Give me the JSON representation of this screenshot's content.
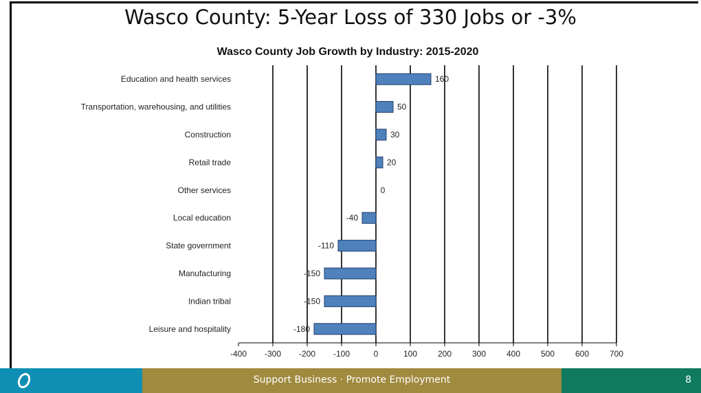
{
  "slide": {
    "title": "Wasco County: 5-Year Loss of 330 Jobs or -3%",
    "footer_text": "Support Business · Promote Employment",
    "page_number": "8"
  },
  "colors": {
    "bar": "#4f81bd",
    "footer_left": "#0f8fb3",
    "footer_mid": "#a08a3e",
    "footer_right": "#0f7a5e"
  },
  "chart_data": {
    "type": "bar",
    "orientation": "horizontal",
    "title": "Wasco County Job Growth by Industry: 2015-2020",
    "categories": [
      "Education and health services",
      "Transportation, warehousing, and utilities",
      "Construction",
      "Retail trade",
      "Other services",
      "Local education",
      "State government",
      "Manufacturing",
      "Indian tribal",
      "Leisure and hospitality"
    ],
    "values": [
      160,
      50,
      30,
      20,
      0,
      -40,
      -110,
      -150,
      -150,
      -180
    ],
    "xlim": [
      -400,
      700
    ],
    "xticks": [
      -400,
      -300,
      -200,
      -100,
      0,
      100,
      200,
      300,
      400,
      500,
      600,
      700
    ],
    "xtick_labels": [
      "-400",
      "-300",
      "-200",
      "-100",
      "0",
      "100",
      "200",
      "300",
      "400",
      "500",
      "600",
      "700"
    ],
    "grid": "vertical",
    "legend": "none"
  }
}
